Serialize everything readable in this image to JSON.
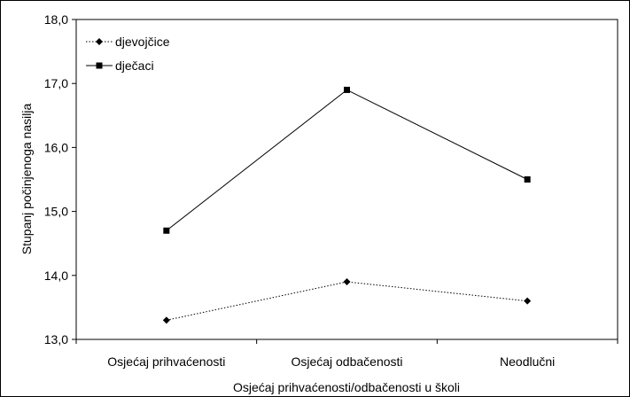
{
  "chart_data": {
    "type": "line",
    "title": "",
    "xlabel": "Osjećaj prihvaćenosti/odbačenosti u školi",
    "ylabel": "Stupanj počinjenoga nasilja",
    "categories": [
      "Osjećaj prihvaćenosti",
      "Osjećaj odbačenosti",
      "Neodlučni"
    ],
    "ylim": [
      13.0,
      18.0
    ],
    "yticks": [
      "13,0",
      "14,0",
      "15,0",
      "16,0",
      "17,0",
      "18,0"
    ],
    "ytick_values": [
      13,
      14,
      15,
      16,
      17,
      18
    ],
    "grid": false,
    "legend": "top-left",
    "series": [
      {
        "name": "djevojčice",
        "values": [
          13.3,
          13.9,
          13.6
        ],
        "marker": "diamond",
        "line": "dotted",
        "color": "#000000"
      },
      {
        "name": "dječaci",
        "values": [
          14.7,
          16.9,
          15.5
        ],
        "marker": "square",
        "line": "solid",
        "color": "#000000"
      }
    ]
  }
}
